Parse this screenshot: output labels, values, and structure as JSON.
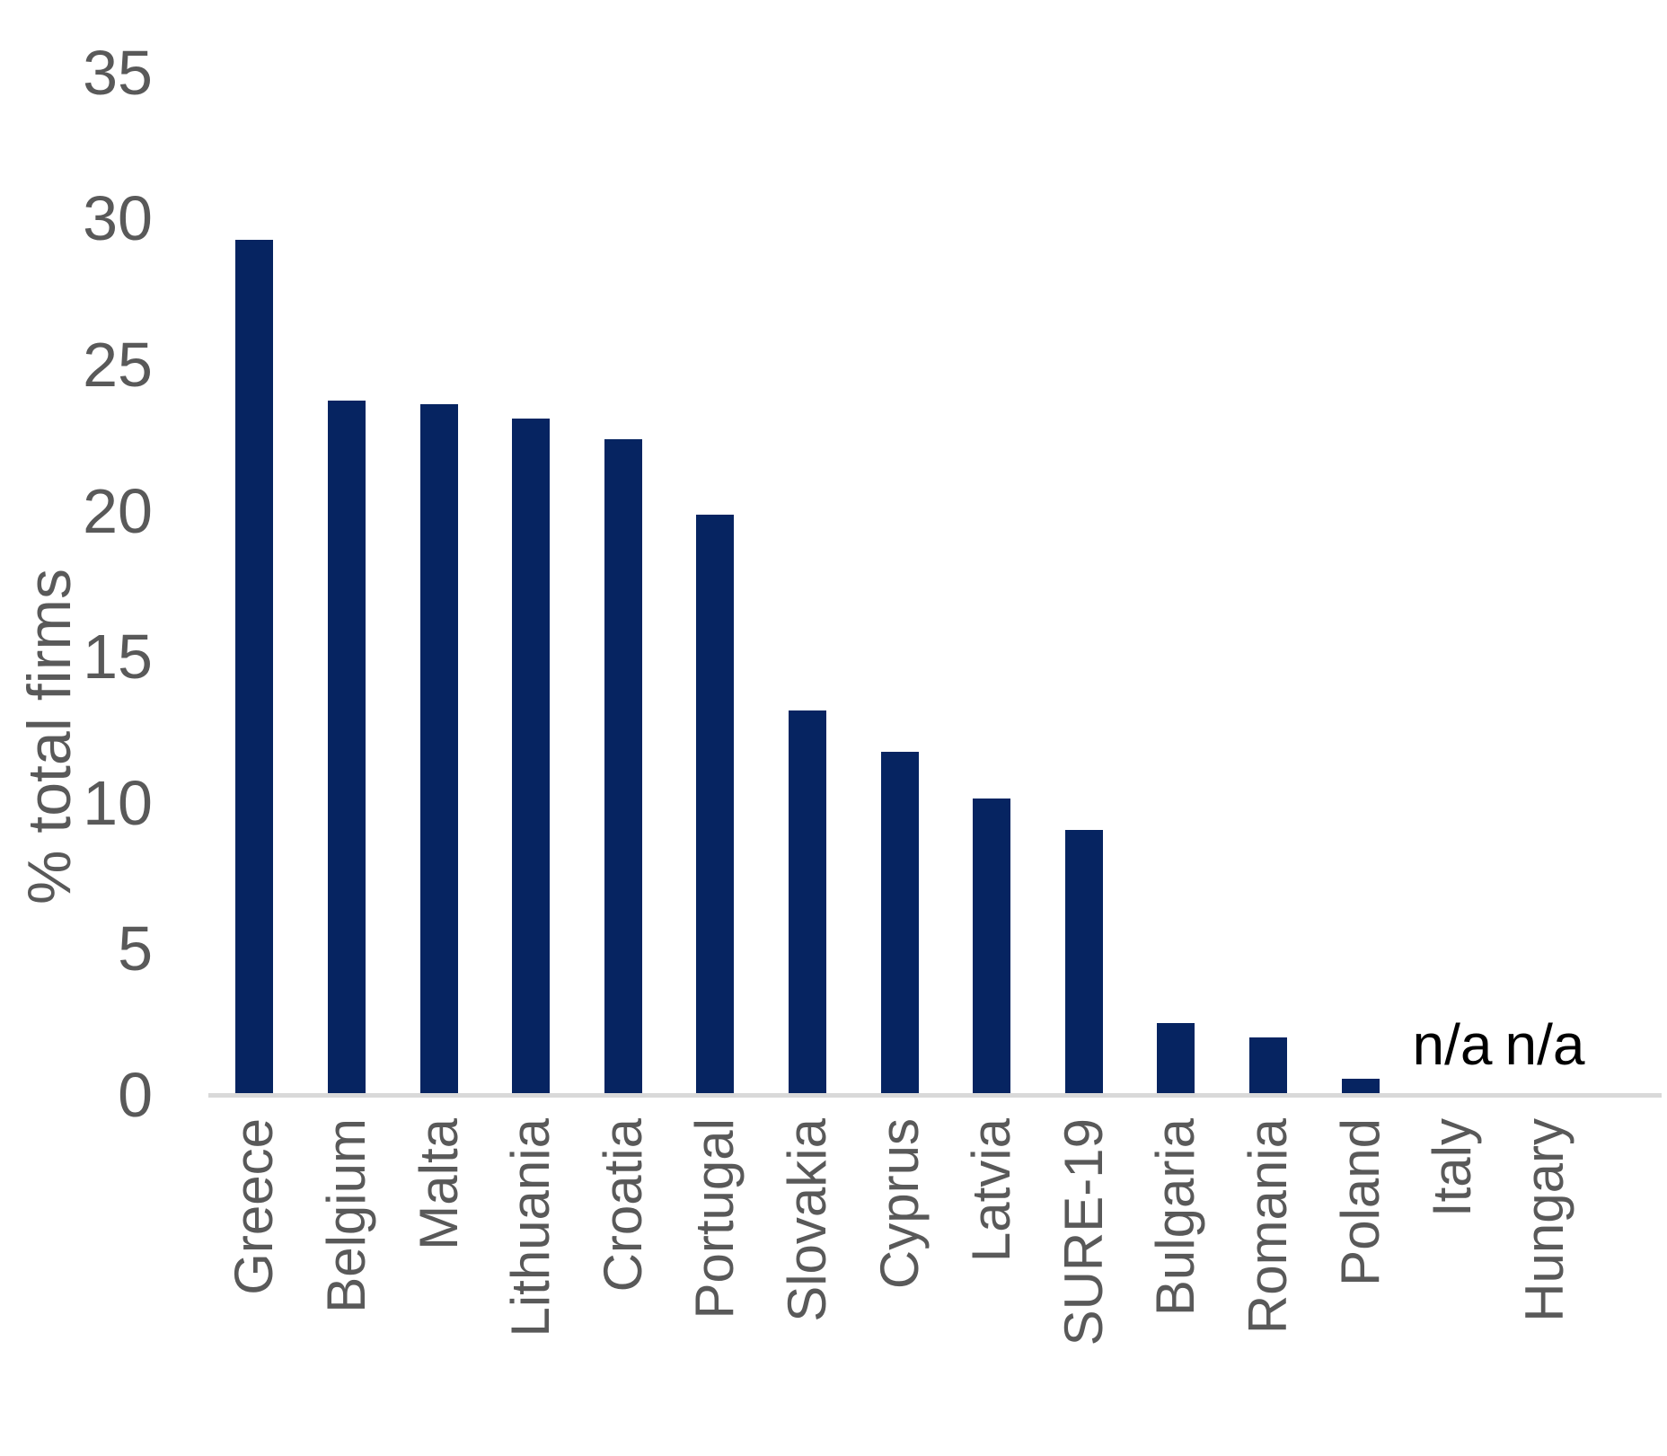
{
  "chart_data": {
    "type": "bar",
    "title": "",
    "xlabel": "",
    "ylabel": "% total firms",
    "categories": [
      "Greece",
      "Belgium",
      "Malta",
      "Lithuania",
      "Croatia",
      "Portugal",
      "Slovakia",
      "Cyprus",
      "Latvia",
      "SURE-19",
      "Bulgaria",
      "Romania",
      "Poland",
      "Italy",
      "Hungary"
    ],
    "values": [
      29.2,
      23.7,
      23.6,
      23.1,
      22.4,
      19.8,
      13.1,
      11.7,
      10.1,
      9.0,
      2.4,
      1.9,
      0.5,
      null,
      null
    ],
    "na_label": "n/a",
    "ylim": [
      0,
      35
    ],
    "yticks": [
      0,
      5,
      10,
      15,
      20,
      25,
      30,
      35
    ],
    "grid": false,
    "legend": false,
    "bar_color": "#062461",
    "axis_line_color": "#D9D9D9",
    "label_color": "#595959",
    "na_color": "#000000"
  }
}
